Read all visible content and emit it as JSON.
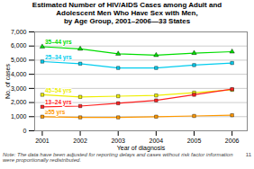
{
  "chart_data": {
    "type": "line",
    "title": "Estimated Number of HIV/AIDS Cases among Adult and\nAdolescent Men Who Have Sex with Men,\nby Age Group, 2001–2006—33 States",
    "xlabel": "Year of diagnosis",
    "ylabel": "No. of cases",
    "x": [
      2001,
      2002,
      2003,
      2004,
      2005,
      2006
    ],
    "series": [
      {
        "name": "35–44 yrs",
        "color": "#00dd00",
        "marker": "triangle",
        "values": [
          5950,
          5800,
          5450,
          5350,
          5500,
          5600
        ]
      },
      {
        "name": "25–34 yrs",
        "color": "#00ccee",
        "marker": "square",
        "values": [
          4900,
          4750,
          4450,
          4450,
          4650,
          4800
        ]
      },
      {
        "name": "45–54 yrs",
        "color": "#eeee00",
        "marker": "square",
        "values": [
          2550,
          2400,
          2450,
          2500,
          2700,
          2900
        ]
      },
      {
        "name": "13–24 yrs",
        "color": "#ff2222",
        "marker": "square",
        "values": [
          1700,
          1750,
          1950,
          2150,
          2550,
          2950
        ]
      },
      {
        "name": "≥55 yrs",
        "color": "#ff9900",
        "marker": "square",
        "values": [
          1000,
          950,
          950,
          1000,
          1050,
          1100
        ]
      }
    ],
    "xlim": [
      2000.8,
      2006.4
    ],
    "xticks": [
      2001,
      2002,
      2003,
      2004,
      2005,
      2006
    ],
    "ylim": [
      0,
      7000
    ],
    "yticks": [
      0,
      {
        "value": 1000,
        "label": "1,000"
      },
      {
        "value": 2000,
        "label": "2,000"
      },
      {
        "value": 3000,
        "label": "3,000"
      },
      {
        "value": 4000,
        "label": "4,000"
      },
      {
        "value": 5000,
        "label": "5,000"
      },
      {
        "value": 6000,
        "label": "6,000"
      },
      {
        "value": 7000,
        "label": "7,000"
      }
    ],
    "grid": true,
    "annotations": [
      "Note: The data have been adjusted for reporting delays and cases without risk factor information were proportionally redistributed.",
      "11"
    ]
  }
}
